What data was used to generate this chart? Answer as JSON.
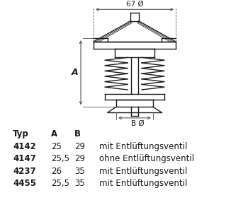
{
  "bg_color": "#ffffff",
  "dim_67_label": "67 Ø",
  "dim_A_label": "A",
  "dim_B_label": "B Ø",
  "table_headers": [
    "Typ",
    "A",
    "B",
    ""
  ],
  "table_rows": [
    [
      "4142",
      "25",
      "29",
      "mit Entlüftungsventil"
    ],
    [
      "4147",
      "25,5",
      "29",
      "ohne Entlüftungsventil"
    ],
    [
      "4237",
      "26",
      "35",
      "mit Entlüftungsventil"
    ],
    [
      "4455",
      "25,5",
      "35",
      "mit Entlüftungsventil"
    ]
  ],
  "line_color": "#1a1a1a",
  "text_color": "#1a1a1a"
}
